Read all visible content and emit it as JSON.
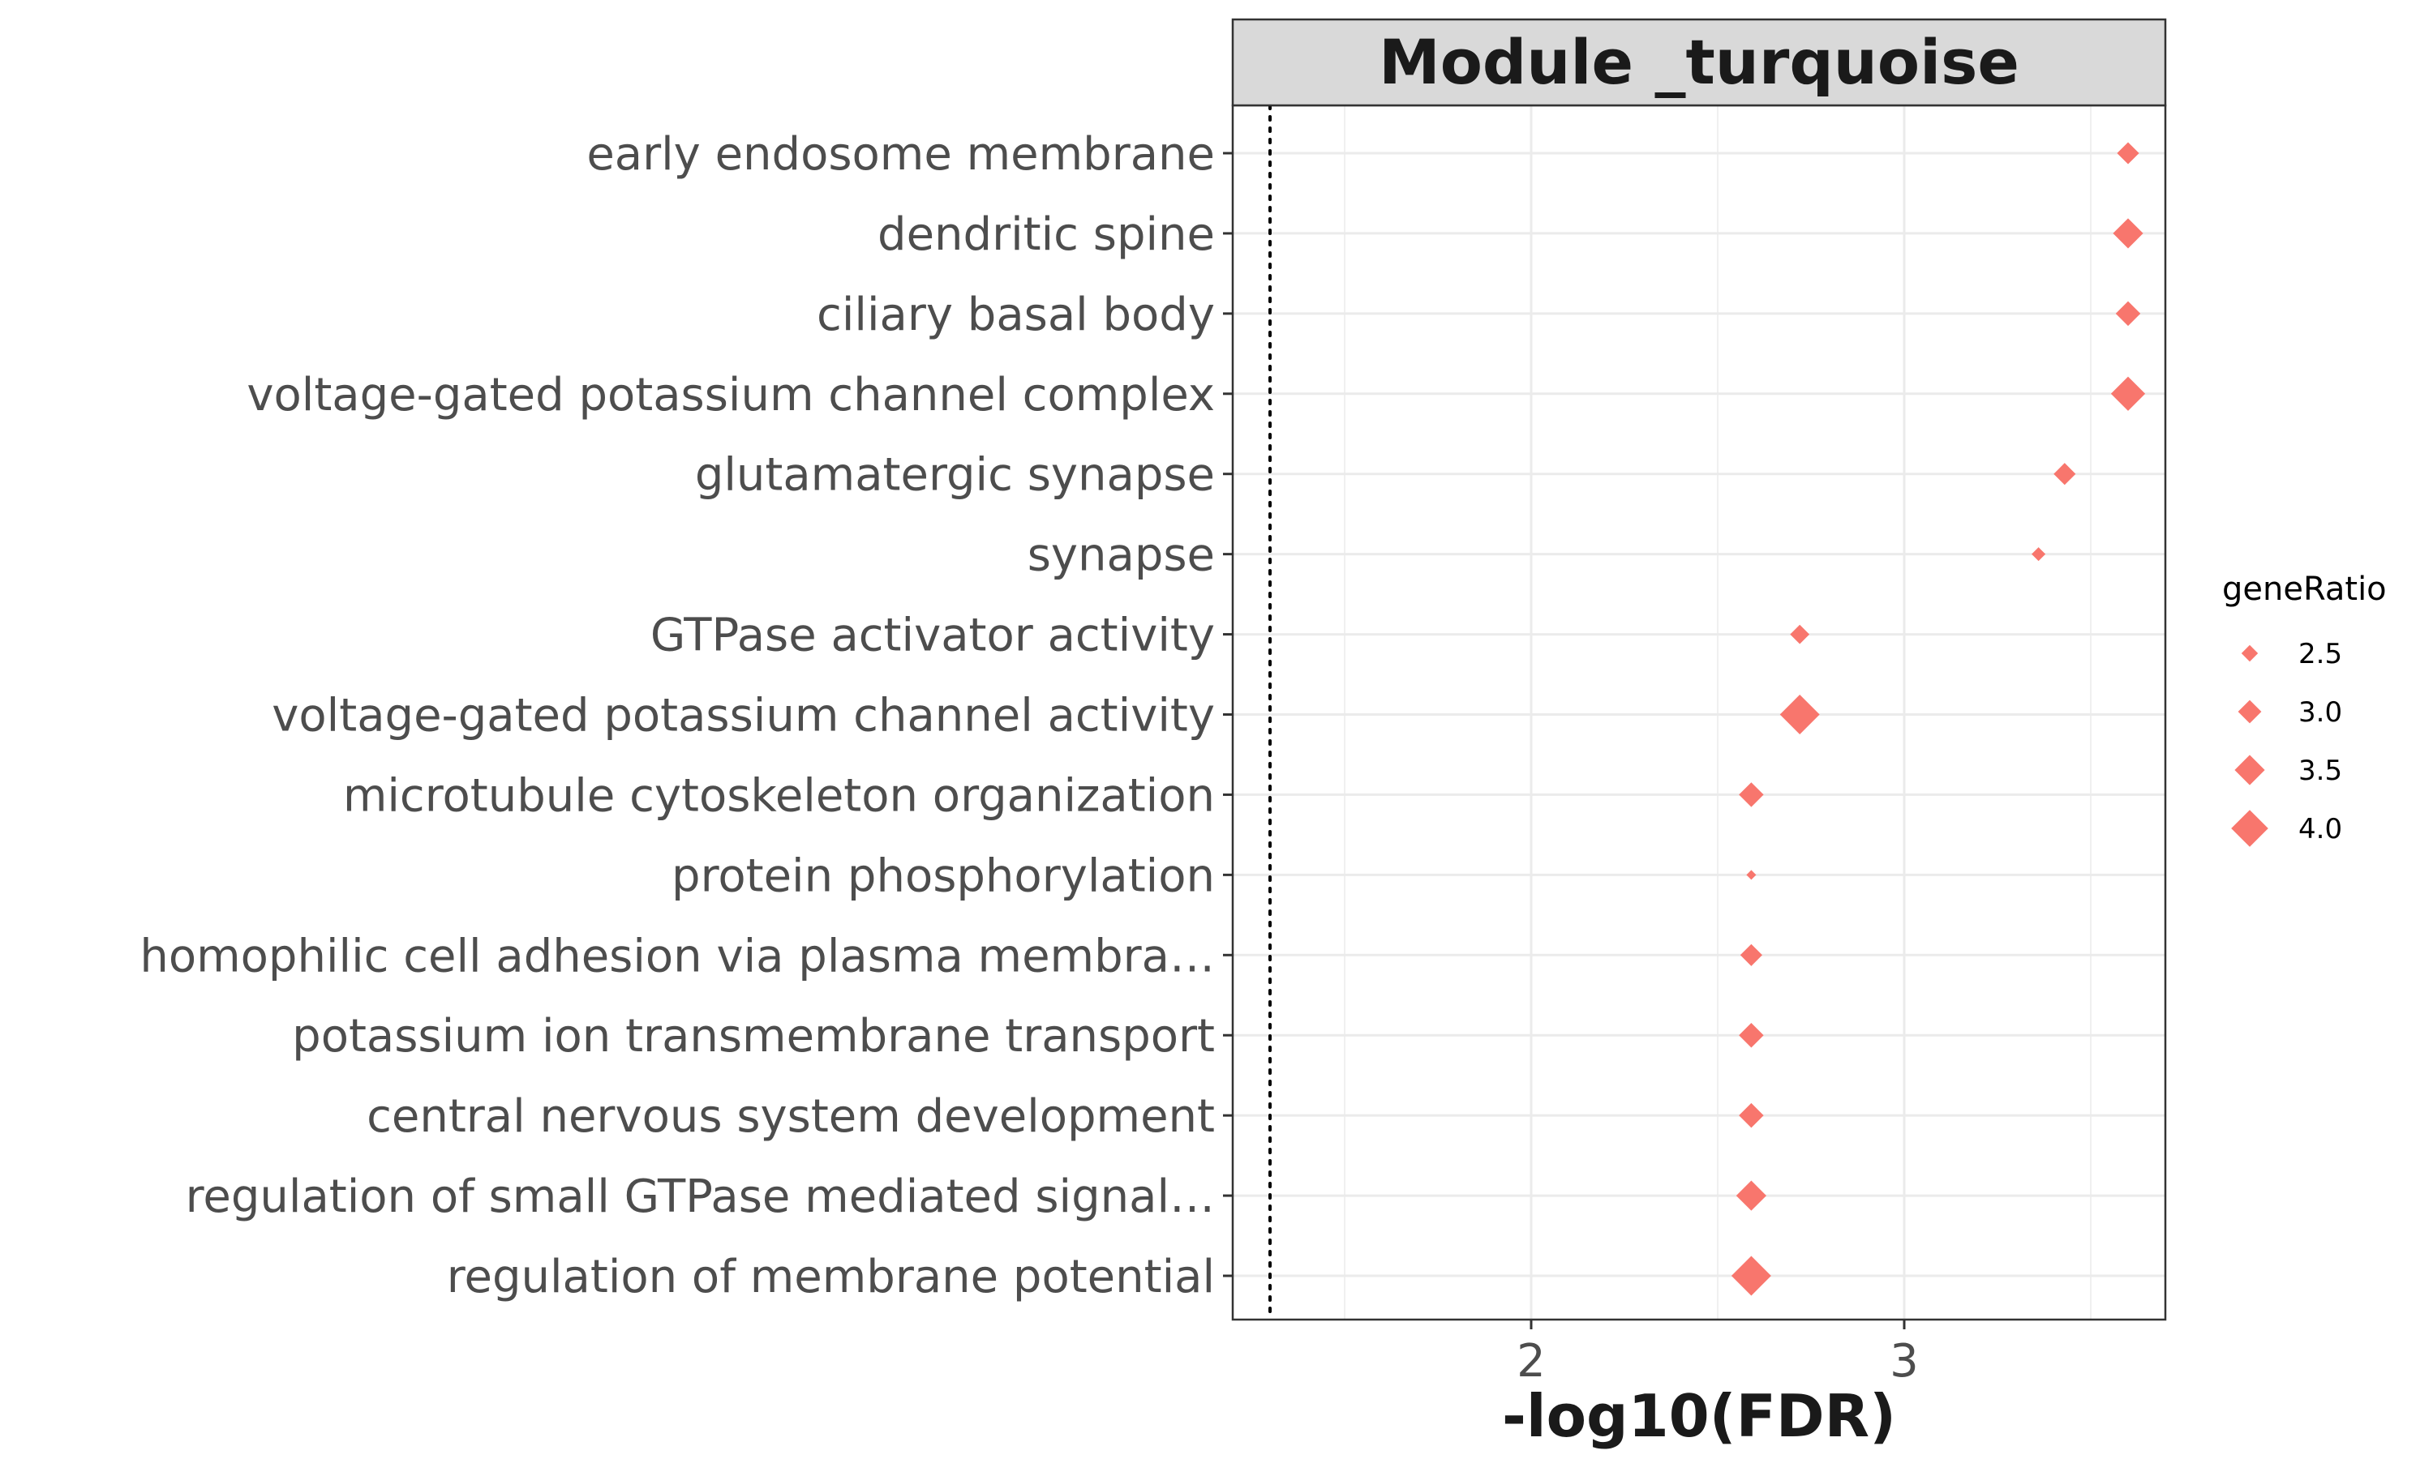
{
  "chart_data": {
    "type": "scatter",
    "title": "Module _turquoise",
    "xlabel": "-log10(FDR)",
    "ylabel": "",
    "xlim": [
      1.2,
      3.7
    ],
    "x_ticks": [
      2,
      3
    ],
    "x_tick_labels": [
      "2",
      "3"
    ],
    "threshold_line_x": 1.3,
    "grid": true,
    "point_color": "#F8766D",
    "point_shape": "diamond",
    "size_legend": {
      "title": "geneRatio",
      "position": "right",
      "values": [
        2.5,
        3.0,
        3.5,
        4.0
      ],
      "labels": [
        "2.5",
        "3.0",
        "3.5",
        "4.0"
      ]
    },
    "categories": [
      "early endosome membrane",
      "dendritic spine",
      "ciliary basal body",
      "voltage-gated potassium channel complex",
      "glutamatergic synapse",
      "synapse",
      "GTPase activator activity",
      "voltage-gated potassium channel activity",
      "microtubule cytoskeleton organization",
      "protein phosphorylation",
      "homophilic cell adhesion via plasma membra…",
      "potassium ion transmembrane transport",
      "central nervous system development",
      "regulation of small GTPase mediated signal…",
      "regulation of membrane potential"
    ],
    "points": [
      {
        "term": "early endosome membrane",
        "x": 3.6,
        "geneRatio": 2.9
      },
      {
        "term": "dendritic spine",
        "x": 3.6,
        "geneRatio": 3.5
      },
      {
        "term": "ciliary basal body",
        "x": 3.6,
        "geneRatio": 3.1
      },
      {
        "term": "voltage-gated potassium channel complex",
        "x": 3.6,
        "geneRatio": 3.8
      },
      {
        "term": "glutamatergic synapse",
        "x": 3.43,
        "geneRatio": 2.9
      },
      {
        "term": "synapse",
        "x": 3.36,
        "geneRatio": 2.3
      },
      {
        "term": "GTPase activator activity",
        "x": 2.72,
        "geneRatio": 2.7
      },
      {
        "term": "voltage-gated potassium channel activity",
        "x": 2.72,
        "geneRatio": 4.2
      },
      {
        "term": "microtubule cytoskeleton organization",
        "x": 2.59,
        "geneRatio": 3.1
      },
      {
        "term": "protein phosphorylation",
        "x": 2.59,
        "geneRatio": 2.0
      },
      {
        "term": "homophilic cell adhesion via plasma membra…",
        "x": 2.59,
        "geneRatio": 2.9
      },
      {
        "term": "potassium ion transmembrane transport",
        "x": 2.59,
        "geneRatio": 3.1
      },
      {
        "term": "central nervous system development",
        "x": 2.59,
        "geneRatio": 3.1
      },
      {
        "term": "regulation of small GTPase mediated signal…",
        "x": 2.59,
        "geneRatio": 3.5
      },
      {
        "term": "regulation of membrane potential",
        "x": 2.59,
        "geneRatio": 4.2
      }
    ]
  }
}
